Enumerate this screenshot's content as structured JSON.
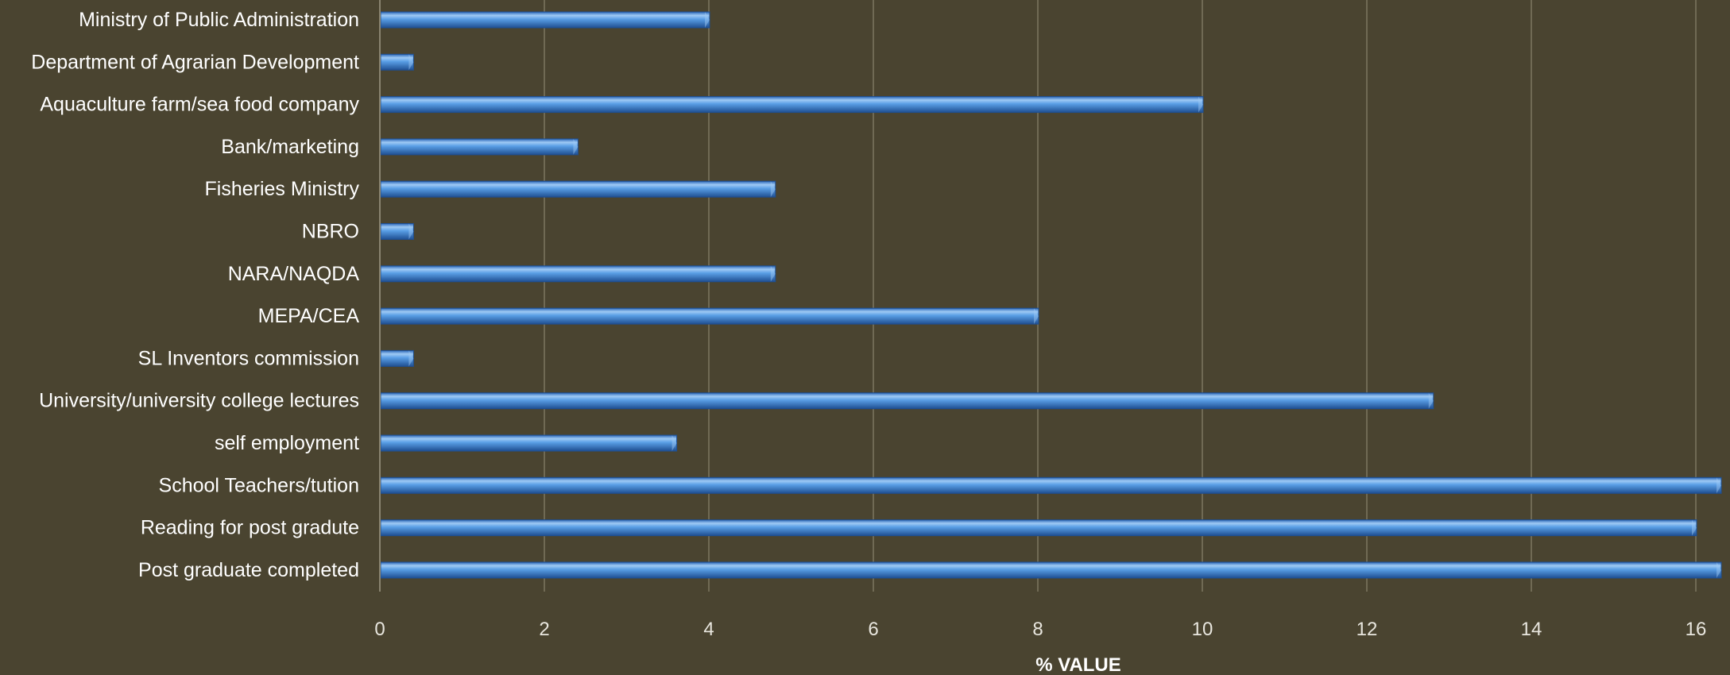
{
  "chart_data": {
    "type": "bar",
    "orientation": "horizontal",
    "categories": [
      "Ministry of Public Administration",
      "Department of Agrarian Development",
      "Aquaculture farm/sea food company",
      "Bank/marketing",
      "Fisheries Ministry",
      "NBRO",
      "NARA/NAQDA",
      "MEPA/CEA",
      "SL Inventors commission",
      "University/university college lectures",
      "self employment",
      "School Teachers/tution",
      "Reading for post gradute",
      "Post graduate completed"
    ],
    "values": [
      4.0,
      0.4,
      10.0,
      2.4,
      4.8,
      0.4,
      4.8,
      8.0,
      0.4,
      12.8,
      3.6,
      16.4,
      16.0,
      16.4
    ],
    "xlabel": "% VALUE",
    "ylabel": "",
    "title": "",
    "xlim": [
      0,
      16.3
    ],
    "xticks": [
      "0",
      "2",
      "4",
      "6",
      "8",
      "10",
      "12",
      "14",
      "16"
    ],
    "grid": true,
    "legend": "none",
    "colors": {
      "background": "#4a4430",
      "bar": "#4a8fd8",
      "bar_light": "#9fcaf4",
      "bar_dark": "#1f4f92",
      "gridline": "#7d7660"
    }
  }
}
